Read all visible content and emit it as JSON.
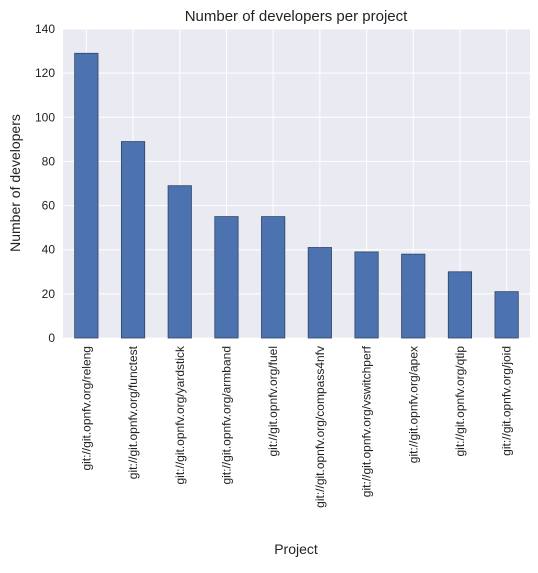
{
  "chart_data": {
    "type": "bar",
    "title": "Number of developers per project",
    "xlabel": "Project",
    "ylabel": "Number of developers",
    "categories": [
      "git://git.opnfv.org/releng",
      "git://git.opnfv.org/functest",
      "git://git.opnfv.org/yardstick",
      "git://git.opnfv.org/armband",
      "git://git.opnfv.org/fuel",
      "git://git.opnfv.org/compass4nfv",
      "git://git.opnfv.org/vswitchperf",
      "git://git.opnfv.org/apex",
      "git://git.opnfv.org/qtip",
      "git://git.opnfv.org/joid"
    ],
    "values": [
      129,
      89,
      69,
      55,
      55,
      41,
      39,
      38,
      30,
      21
    ],
    "ylim": [
      0,
      140
    ],
    "yticks": [
      "0",
      "20",
      "40",
      "60",
      "80",
      "100",
      "120",
      "140"
    ],
    "grid": true,
    "legend": "none",
    "colors": {
      "bar": "#4c72b0",
      "bar_edge": "#2f4466",
      "plot_background": "#eaeaf2",
      "grid": "#ffffff"
    }
  }
}
